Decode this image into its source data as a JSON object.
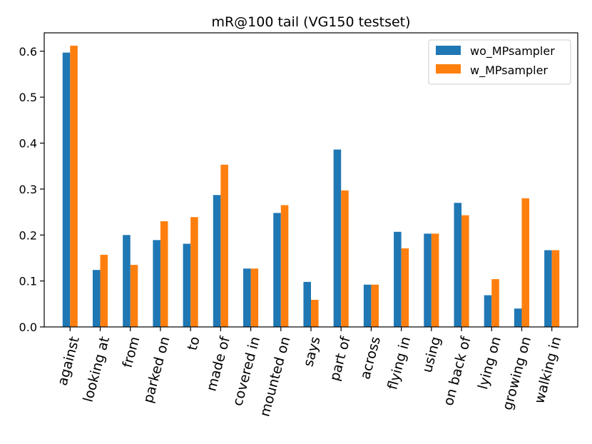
{
  "chart_data": {
    "type": "bar",
    "title": "mR@100 tail (VG150 testset)",
    "xlabel": "",
    "ylabel": "",
    "ylim": [
      0,
      0.64
    ],
    "yticks": [
      0.0,
      0.1,
      0.2,
      0.3,
      0.4,
      0.5,
      0.6
    ],
    "ytick_labels": [
      "0.0",
      "0.1",
      "0.2",
      "0.3",
      "0.4",
      "0.5",
      "0.6"
    ],
    "categories": [
      "against",
      "looking at",
      "from",
      "parked on",
      "to",
      "made of",
      "covered in",
      "mounted on",
      "says",
      "part of",
      "across",
      "flying in",
      "using",
      "on back of",
      "lying on",
      "growing on",
      "walking in"
    ],
    "series": [
      {
        "name": "wo_MPsampler",
        "color": "#1f77b4",
        "values": [
          0.597,
          0.124,
          0.2,
          0.189,
          0.181,
          0.287,
          0.127,
          0.248,
          0.098,
          0.386,
          0.092,
          0.207,
          0.203,
          0.27,
          0.069,
          0.04,
          0.167
        ]
      },
      {
        "name": "w_MPsampler",
        "color": "#ff7f0e",
        "values": [
          0.612,
          0.157,
          0.135,
          0.23,
          0.239,
          0.353,
          0.127,
          0.265,
          0.059,
          0.297,
          0.092,
          0.171,
          0.203,
          0.243,
          0.104,
          0.28,
          0.167
        ]
      }
    ],
    "legend_position": "top-right",
    "grid": false
  }
}
